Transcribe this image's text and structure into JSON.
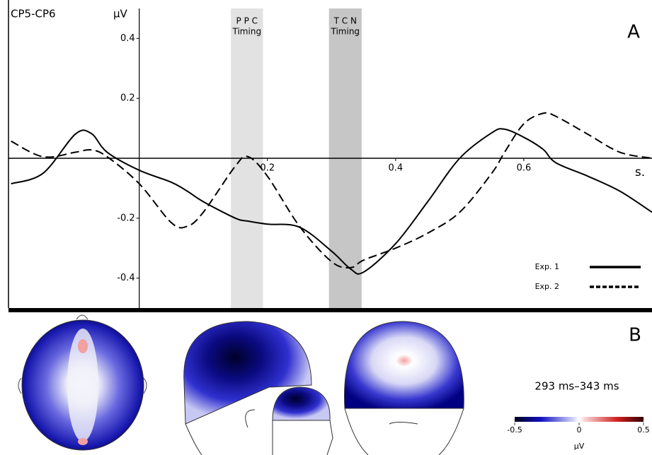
{
  "chart_data": {
    "type": "line",
    "channel_label": "CP5-CP6",
    "panel_label": "A",
    "y_label": "µV",
    "x_label": "s.",
    "x": [
      -0.2,
      -0.15,
      -0.1,
      -0.075,
      -0.05,
      0,
      0.05,
      0.075,
      0.1,
      0.15,
      0.17,
      0.2,
      0.25,
      0.3,
      0.33,
      0.35,
      0.4,
      0.45,
      0.5,
      0.55,
      0.57,
      0.6,
      0.63,
      0.65,
      0.7,
      0.75,
      0.8
    ],
    "series": [
      {
        "name": "Exp. 1",
        "color": "#000000",
        "style": "solid",
        "values": [
          -0.085,
          -0.05,
          0.08,
          0.083,
          0.02,
          -0.04,
          -0.08,
          -0.11,
          -0.145,
          -0.2,
          -0.21,
          -0.22,
          -0.23,
          -0.31,
          -0.37,
          -0.38,
          -0.285,
          -0.145,
          0,
          0.085,
          0.097,
          0.07,
          0.03,
          -0.015,
          -0.06,
          -0.11,
          -0.18
        ]
      },
      {
        "name": "Exp. 2",
        "color": "#000000",
        "style": "dashed",
        "values": [
          0.057,
          0.005,
          0.02,
          0.028,
          0.005,
          -0.085,
          -0.215,
          -0.227,
          -0.18,
          -0.026,
          0.005,
          -0.06,
          -0.227,
          -0.345,
          -0.365,
          -0.34,
          -0.3,
          -0.25,
          -0.18,
          -0.05,
          0.02,
          0.115,
          0.15,
          0.14,
          0.08,
          0.02,
          0
        ]
      }
    ],
    "bands": [
      {
        "label": [
          "P P C",
          "Timing"
        ],
        "start": 0.143,
        "end": 0.193,
        "color": "#e2e2e2"
      },
      {
        "label": [
          "T C N",
          "Timing"
        ],
        "start": 0.296,
        "end": 0.347,
        "color": "#c6c6c6"
      }
    ],
    "xlim": [
      -0.204,
      0.8
    ],
    "ylim": [
      -0.5,
      0.5
    ],
    "xticks": [
      0.2,
      0.4,
      0.6
    ],
    "yticks": [
      -0.4,
      -0.2,
      0.2,
      0.4
    ]
  },
  "topography": {
    "panel_label": "B",
    "time_window": "293 ms–343 ms",
    "colorbar": {
      "range": [
        -0.5,
        0.5
      ],
      "ticks": [
        -0.5,
        0,
        0.5
      ],
      "label": "µV"
    }
  }
}
